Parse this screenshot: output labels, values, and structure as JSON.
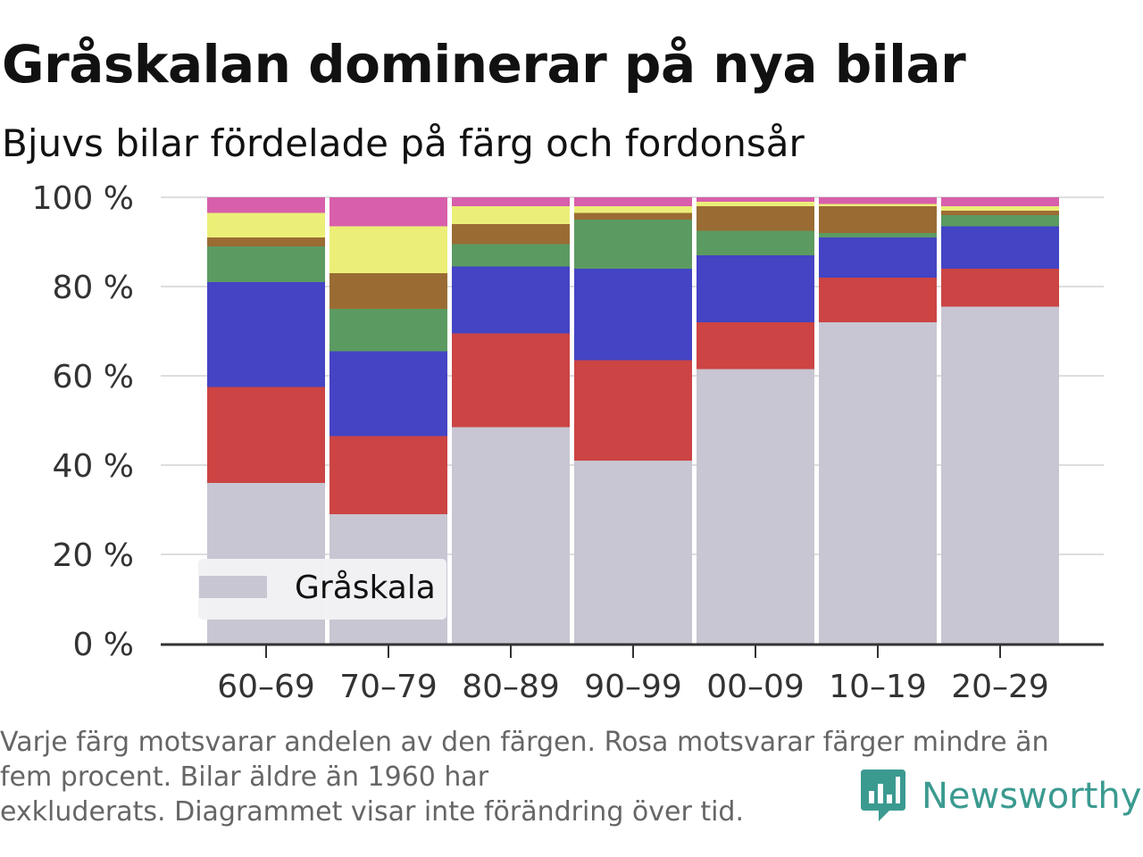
{
  "title": "Gråskalan dominerar på nya bilar",
  "subtitle": "Bjuvs bilar fördelade på färg och fordonsår",
  "footnote": {
    "line1": "Varje färg motsvarar andelen av den färgen. Rosa motsvarar färger mindre än",
    "line2": "fem procent. Bilar äldre än 1960 har",
    "line3": "exkluderats. Diagrammet visar inte förändring över tid."
  },
  "brand": {
    "name": "Newsworthy",
    "color": "#3b9a90"
  },
  "legend": {
    "label": "Gråskala"
  },
  "chart_data": {
    "type": "bar",
    "stacked": true,
    "categories": [
      "60–69",
      "70–79",
      "80–89",
      "90–99",
      "00–09",
      "10–19",
      "20–29"
    ],
    "ylim": [
      0,
      100
    ],
    "yticks": [
      0,
      20,
      40,
      60,
      80,
      100
    ],
    "ytick_labels": [
      "0 %",
      "20 %",
      "40 %",
      "60 %",
      "80 %",
      "100 %"
    ],
    "grid": true,
    "legend_position": "bottom-left",
    "series": [
      {
        "name": "Gråskala",
        "color": "#c8c6d2",
        "values": [
          36,
          29,
          48.5,
          41,
          61.5,
          72,
          75.5
        ]
      },
      {
        "color": "#cc4444",
        "values": [
          21.5,
          17.5,
          21,
          22.5,
          10.5,
          10,
          8.5
        ]
      },
      {
        "color": "#4444c4",
        "values": [
          23.5,
          19,
          15,
          20.5,
          15,
          9,
          9.5
        ]
      },
      {
        "color": "#5b9b62",
        "values": [
          8,
          9.5,
          5,
          11,
          5.5,
          1,
          2.5
        ]
      },
      {
        "color": "#9a6c34",
        "values": [
          2,
          8,
          4.5,
          1.5,
          5.5,
          6,
          1
        ]
      },
      {
        "color": "#ebef78",
        "values": [
          5.5,
          10.5,
          4,
          1.5,
          1,
          0.5,
          1
        ]
      },
      {
        "color": "#d85fab",
        "values": [
          3.5,
          6.5,
          2,
          2,
          1,
          1.5,
          2
        ]
      }
    ]
  }
}
